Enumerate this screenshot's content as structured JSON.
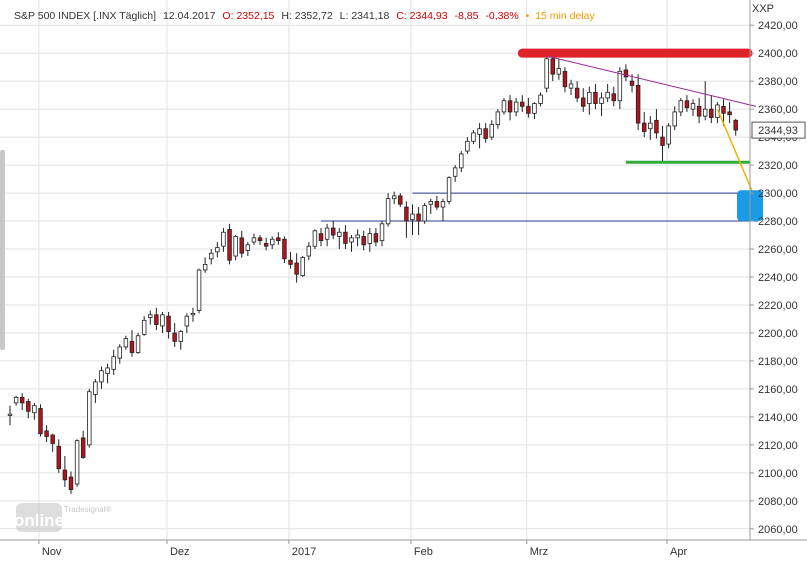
{
  "header": {
    "instrument": "S&P 500 INDEX [.INX Täglich]",
    "date": "12.04.2017",
    "open_label": "O:",
    "open": "2352,15",
    "high_label": "H:",
    "high": "2352,72",
    "low_label": "L:",
    "low": "2341,18",
    "close_label": "C:",
    "close": "2344,93",
    "change": "-8,85",
    "change_pct": "-0,38%",
    "delay_icon": "bullet-icon",
    "delay": "15 min delay"
  },
  "axis_badge": "XXP",
  "last_price_label": "2344,93",
  "logo": {
    "small": "Tradesignal®",
    "big": "online"
  },
  "colors": {
    "up_candle": "#ffffff",
    "down_candle": "#b3141c",
    "wick": "#222222",
    "resistance": "#e0222b",
    "support": "#2fae3a",
    "channel": "#2b3a8f",
    "trendline": "#9a2a9a",
    "projection": "#f0b400",
    "target_box": "#1b9be6",
    "delay": "#f29a00"
  },
  "chart_data": {
    "type": "candlestick",
    "title": "S&P 500 INDEX [.INX Täglich]",
    "ylim": [
      2050,
      2425
    ],
    "y_ticks": [
      "2420,00",
      "2400,00",
      "2380,00",
      "2360,00",
      "2340,00",
      "2320,00",
      "2300,00",
      "2280,00",
      "2260,00",
      "2240,00",
      "2220,00",
      "2200,00",
      "2180,00",
      "2160,00",
      "2140,00",
      "2120,00",
      "2100,00",
      "2080,00",
      "2060,00"
    ],
    "y_tick_values": [
      2420,
      2400,
      2380,
      2360,
      2340,
      2320,
      2300,
      2280,
      2260,
      2240,
      2220,
      2200,
      2180,
      2160,
      2140,
      2120,
      2100,
      2080,
      2060
    ],
    "x_ticks": [
      {
        "label": "Nov",
        "index": 9
      },
      {
        "label": "Dez",
        "index": 30
      },
      {
        "label": "2017",
        "index": 50
      },
      {
        "label": "Feb",
        "index": 70
      },
      {
        "label": "Mrz",
        "index": 89
      },
      {
        "label": "Apr",
        "index": 112
      }
    ],
    "n_slots": 122,
    "candles": [
      [
        2141,
        2148,
        2134,
        2142
      ],
      [
        2150,
        2155,
        2148,
        2154
      ],
      [
        2154,
        2157,
        2145,
        2150
      ],
      [
        2151,
        2153,
        2139,
        2144
      ],
      [
        2143,
        2150,
        2138,
        2148
      ],
      [
        2146,
        2149,
        2126,
        2128
      ],
      [
        2130,
        2134,
        2122,
        2126
      ],
      [
        2127,
        2128,
        2115,
        2121
      ],
      [
        2119,
        2124,
        2100,
        2103
      ],
      [
        2102,
        2112,
        2090,
        2095
      ],
      [
        2097,
        2101,
        2085,
        2088
      ],
      [
        2092,
        2124,
        2090,
        2123
      ],
      [
        2125,
        2130,
        2110,
        2111
      ],
      [
        2120,
        2160,
        2118,
        2158
      ],
      [
        2156,
        2167,
        2150,
        2165
      ],
      [
        2165,
        2176,
        2160,
        2173
      ],
      [
        2171,
        2178,
        2164,
        2175
      ],
      [
        2174,
        2188,
        2170,
        2183
      ],
      [
        2182,
        2192,
        2178,
        2190
      ],
      [
        2190,
        2198,
        2188,
        2196
      ],
      [
        2194,
        2202,
        2183,
        2186
      ],
      [
        2186,
        2200,
        2185,
        2198
      ],
      [
        2199,
        2212,
        2198,
        2209
      ],
      [
        2211,
        2216,
        2206,
        2213
      ],
      [
        2213,
        2218,
        2202,
        2206
      ],
      [
        2205,
        2215,
        2200,
        2213
      ],
      [
        2212,
        2215,
        2196,
        2201
      ],
      [
        2200,
        2207,
        2190,
        2194
      ],
      [
        2194,
        2202,
        2188,
        2201
      ],
      [
        2205,
        2214,
        2200,
        2212
      ],
      [
        2213,
        2218,
        2208,
        2214
      ],
      [
        2216,
        2246,
        2214,
        2245
      ],
      [
        2245,
        2254,
        2243,
        2249
      ],
      [
        2253,
        2260,
        2249,
        2257
      ],
      [
        2258,
        2265,
        2254,
        2261
      ],
      [
        2262,
        2275,
        2258,
        2272
      ],
      [
        2274,
        2278,
        2249,
        2252
      ],
      [
        2255,
        2270,
        2252,
        2269
      ],
      [
        2268,
        2273,
        2254,
        2257
      ],
      [
        2259,
        2265,
        2255,
        2263
      ],
      [
        2265,
        2271,
        2263,
        2268
      ],
      [
        2268,
        2270,
        2263,
        2266
      ],
      [
        2264,
        2268,
        2259,
        2262
      ],
      [
        2263,
        2269,
        2260,
        2267
      ],
      [
        2268,
        2272,
        2263,
        2266
      ],
      [
        2267,
        2269,
        2250,
        2253
      ],
      [
        2252,
        2258,
        2246,
        2249
      ],
      [
        2250,
        2257,
        2236,
        2242
      ],
      [
        2241,
        2255,
        2240,
        2254
      ],
      [
        2255,
        2265,
        2252,
        2262
      ],
      [
        2262,
        2274,
        2260,
        2273
      ],
      [
        2271,
        2275,
        2262,
        2266
      ],
      [
        2267,
        2278,
        2262,
        2275
      ],
      [
        2275,
        2280,
        2267,
        2270
      ],
      [
        2269,
        2275,
        2260,
        2272
      ],
      [
        2272,
        2277,
        2260,
        2264
      ],
      [
        2265,
        2270,
        2258,
        2268
      ],
      [
        2268,
        2274,
        2262,
        2270
      ],
      [
        2269,
        2273,
        2259,
        2263
      ],
      [
        2264,
        2275,
        2258,
        2271
      ],
      [
        2271,
        2275,
        2262,
        2265
      ],
      [
        2266,
        2280,
        2262,
        2278
      ],
      [
        2278,
        2300,
        2276,
        2296
      ],
      [
        2296,
        2301,
        2292,
        2298
      ],
      [
        2298,
        2300,
        2290,
        2292
      ],
      [
        2290,
        2294,
        2268,
        2280
      ],
      [
        2281,
        2292,
        2270,
        2285
      ],
      [
        2285,
        2290,
        2270,
        2280
      ],
      [
        2280,
        2293,
        2278,
        2291
      ],
      [
        2292,
        2296,
        2285,
        2294
      ],
      [
        2294,
        2298,
        2288,
        2290
      ],
      [
        2290,
        2296,
        2280,
        2294
      ],
      [
        2294,
        2312,
        2292,
        2311
      ],
      [
        2312,
        2320,
        2308,
        2318
      ],
      [
        2318,
        2330,
        2315,
        2328
      ],
      [
        2330,
        2340,
        2328,
        2337
      ],
      [
        2337,
        2345,
        2335,
        2343
      ],
      [
        2342,
        2350,
        2332,
        2346
      ],
      [
        2346,
        2350,
        2336,
        2339
      ],
      [
        2340,
        2352,
        2338,
        2349
      ],
      [
        2349,
        2360,
        2346,
        2358
      ],
      [
        2358,
        2368,
        2356,
        2366
      ],
      [
        2366,
        2370,
        2352,
        2358
      ],
      [
        2358,
        2368,
        2355,
        2365
      ],
      [
        2365,
        2370,
        2358,
        2362
      ],
      [
        2362,
        2368,
        2354,
        2357
      ],
      [
        2357,
        2365,
        2353,
        2364
      ],
      [
        2364,
        2372,
        2362,
        2370
      ],
      [
        2375,
        2400,
        2372,
        2396
      ],
      [
        2396,
        2398,
        2380,
        2385
      ],
      [
        2385,
        2396,
        2381,
        2389
      ],
      [
        2387,
        2390,
        2372,
        2376
      ],
      [
        2375,
        2381,
        2370,
        2378
      ],
      [
        2375,
        2380,
        2365,
        2368
      ],
      [
        2368,
        2375,
        2358,
        2362
      ],
      [
        2364,
        2376,
        2356,
        2372
      ],
      [
        2372,
        2378,
        2360,
        2364
      ],
      [
        2364,
        2372,
        2355,
        2368
      ],
      [
        2368,
        2378,
        2365,
        2372
      ],
      [
        2371,
        2376,
        2362,
        2366
      ],
      [
        2366,
        2390,
        2360,
        2387
      ],
      [
        2388,
        2392,
        2380,
        2383
      ],
      [
        2380,
        2385,
        2372,
        2377
      ],
      [
        2377,
        2385,
        2345,
        2350
      ],
      [
        2350,
        2358,
        2340,
        2344
      ],
      [
        2346,
        2355,
        2338,
        2350
      ],
      [
        2352,
        2360,
        2339,
        2343
      ],
      [
        2340,
        2348,
        2322,
        2334
      ],
      [
        2335,
        2350,
        2332,
        2348
      ],
      [
        2348,
        2362,
        2345,
        2358
      ],
      [
        2358,
        2368,
        2355,
        2366
      ],
      [
        2366,
        2370,
        2358,
        2361
      ],
      [
        2360,
        2367,
        2355,
        2364
      ],
      [
        2362,
        2368,
        2350,
        2355
      ],
      [
        2355,
        2380,
        2352,
        2360
      ],
      [
        2360,
        2370,
        2350,
        2354
      ],
      [
        2354,
        2365,
        2350,
        2363
      ],
      [
        2362,
        2367,
        2348,
        2357
      ],
      [
        2358,
        2365,
        2350,
        2356
      ],
      [
        2352,
        2353,
        2341,
        2345
      ],
      [
        null,
        null,
        null,
        null
      ],
      [
        null,
        null,
        null,
        null
      ]
    ],
    "annotations": [
      {
        "kind": "resistance",
        "from_index": 84,
        "to_index": 122,
        "value": 2400
      },
      {
        "kind": "trendline",
        "from_index": 88,
        "from_value": 2398,
        "to_index": 122,
        "to_value": 2362
      },
      {
        "kind": "support",
        "from_index": 101,
        "to_index": 122,
        "value": 2322
      },
      {
        "kind": "channel_upper",
        "from_index": 66,
        "to_index": 122,
        "value": 2300
      },
      {
        "kind": "channel_lower",
        "from_index": 51,
        "to_index": 122,
        "value": 2280
      },
      {
        "kind": "projection",
        "from_index": 116,
        "from_value": 2360,
        "to_index": 122,
        "to_value": 2295
      },
      {
        "kind": "target_zone",
        "from_value": 2280,
        "to_value": 2302,
        "at_index": 122
      }
    ]
  }
}
